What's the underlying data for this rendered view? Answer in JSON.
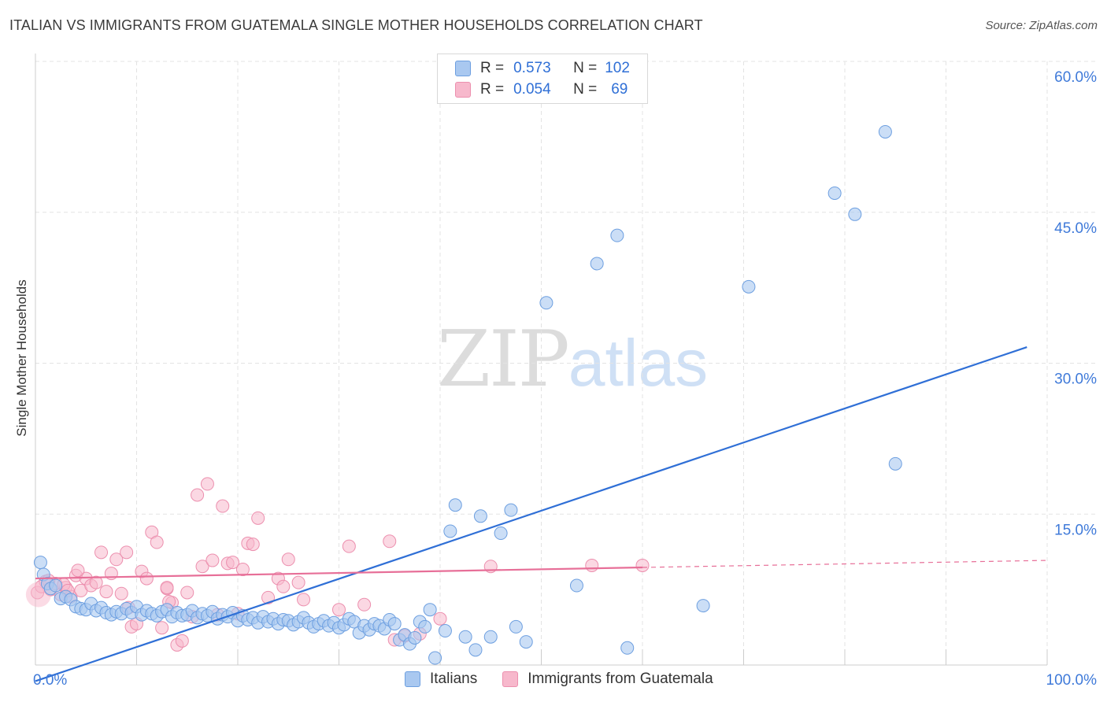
{
  "header": {
    "title": "ITALIAN VS IMMIGRANTS FROM GUATEMALA SINGLE MOTHER HOUSEHOLDS CORRELATION CHART",
    "source": "Source: ZipAtlas.com"
  },
  "watermark": {
    "zip": "ZIP",
    "atlas": "atlas"
  },
  "legend": {
    "rows": [
      {
        "r_label": "R =",
        "r_value": "0.573",
        "n_label": "N =",
        "n_value": "102"
      },
      {
        "r_label": "R =",
        "r_value": "0.054",
        "n_label": "N =",
        "n_value": "69"
      }
    ]
  },
  "bottom_legend": {
    "items": [
      {
        "label": "Italians"
      },
      {
        "label": "Immigrants from Guatemala"
      }
    ]
  },
  "colors": {
    "italians_fill": "#a9c8f0",
    "italians_stroke": "#6d9fe0",
    "italians_line": "#2f6fd6",
    "guatemala_fill": "#f7b8cc",
    "guatemala_stroke": "#ec8fae",
    "guatemala_line": "#e76f98",
    "grid": "#e3e3e3",
    "tick_label": "#3f7ad9"
  },
  "chart_data": {
    "type": "scatter",
    "title": "ITALIAN VS IMMIGRANTS FROM GUATEMALA SINGLE MOTHER HOUSEHOLDS CORRELATION CHART",
    "xlabel": "",
    "ylabel": "Single Mother Households",
    "xlim": [
      0,
      100
    ],
    "ylim": [
      0,
      60
    ],
    "x_tick_labels": [
      {
        "value": 0,
        "label": "0.0%"
      },
      {
        "value": 100,
        "label": "100.0%"
      }
    ],
    "y_tick_labels": [
      {
        "value": 15,
        "label": "15.0%"
      },
      {
        "value": 30,
        "label": "30.0%"
      },
      {
        "value": 45,
        "label": "45.0%"
      },
      {
        "value": 60,
        "label": "60.0%"
      }
    ],
    "grid": true,
    "series": [
      {
        "name": "Italians",
        "points": [
          [
            0.5,
            10.2
          ],
          [
            0.8,
            9.0
          ],
          [
            1.2,
            8.1
          ],
          [
            1.5,
            7.6
          ],
          [
            2.0,
            7.9
          ],
          [
            2.5,
            6.6
          ],
          [
            3.0,
            6.8
          ],
          [
            3.5,
            6.5
          ],
          [
            4.0,
            5.8
          ],
          [
            4.5,
            5.6
          ],
          [
            5.0,
            5.5
          ],
          [
            5.5,
            6.1
          ],
          [
            6.0,
            5.4
          ],
          [
            6.5,
            5.7
          ],
          [
            7.0,
            5.2
          ],
          [
            7.5,
            5.0
          ],
          [
            8.0,
            5.3
          ],
          [
            8.5,
            5.1
          ],
          [
            9.0,
            5.6
          ],
          [
            9.5,
            5.2
          ],
          [
            10.0,
            5.8
          ],
          [
            10.5,
            5.0
          ],
          [
            11.0,
            5.4
          ],
          [
            11.5,
            5.1
          ],
          [
            12.0,
            4.9
          ],
          [
            12.5,
            5.3
          ],
          [
            13.0,
            5.5
          ],
          [
            13.5,
            4.8
          ],
          [
            14.0,
            5.2
          ],
          [
            14.5,
            4.9
          ],
          [
            15.0,
            5.0
          ],
          [
            15.5,
            5.4
          ],
          [
            16.0,
            4.7
          ],
          [
            16.5,
            5.1
          ],
          [
            17.0,
            4.9
          ],
          [
            17.5,
            5.3
          ],
          [
            18.0,
            4.6
          ],
          [
            18.5,
            5.0
          ],
          [
            19.0,
            4.8
          ],
          [
            19.5,
            5.2
          ],
          [
            20.0,
            4.4
          ],
          [
            20.5,
            4.9
          ],
          [
            21.0,
            4.5
          ],
          [
            21.5,
            4.7
          ],
          [
            22.0,
            4.2
          ],
          [
            22.5,
            4.8
          ],
          [
            23.0,
            4.3
          ],
          [
            23.5,
            4.6
          ],
          [
            24.0,
            4.1
          ],
          [
            24.5,
            4.5
          ],
          [
            25.0,
            4.4
          ],
          [
            25.5,
            4.0
          ],
          [
            26.0,
            4.3
          ],
          [
            26.5,
            4.7
          ],
          [
            27.0,
            4.2
          ],
          [
            27.5,
            3.8
          ],
          [
            28.0,
            4.1
          ],
          [
            28.5,
            4.4
          ],
          [
            29.0,
            3.9
          ],
          [
            29.5,
            4.2
          ],
          [
            30.0,
            3.7
          ],
          [
            30.5,
            4.0
          ],
          [
            31.0,
            4.6
          ],
          [
            31.5,
            4.3
          ],
          [
            32.0,
            3.2
          ],
          [
            32.5,
            3.9
          ],
          [
            33.0,
            3.5
          ],
          [
            33.5,
            4.1
          ],
          [
            34.0,
            3.9
          ],
          [
            34.5,
            3.6
          ],
          [
            35.0,
            4.5
          ],
          [
            35.5,
            4.1
          ],
          [
            36.0,
            2.5
          ],
          [
            36.5,
            3.0
          ],
          [
            37.0,
            2.1
          ],
          [
            37.5,
            2.7
          ],
          [
            38.0,
            4.3
          ],
          [
            38.5,
            3.8
          ],
          [
            39.0,
            5.5
          ],
          [
            39.5,
            0.7
          ],
          [
            40.5,
            3.4
          ],
          [
            41.0,
            13.3
          ],
          [
            41.5,
            15.9
          ],
          [
            42.5,
            2.8
          ],
          [
            43.5,
            1.5
          ],
          [
            44.0,
            14.8
          ],
          [
            45.0,
            2.8
          ],
          [
            46.0,
            13.1
          ],
          [
            47.0,
            15.4
          ],
          [
            47.5,
            3.8
          ],
          [
            48.5,
            2.3
          ],
          [
            50.5,
            36.0
          ],
          [
            53.5,
            7.9
          ],
          [
            55.5,
            39.9
          ],
          [
            57.5,
            42.7
          ],
          [
            58.5,
            1.7
          ],
          [
            66.0,
            5.9
          ],
          [
            70.5,
            37.6
          ],
          [
            79.0,
            46.9
          ],
          [
            81.0,
            44.8
          ],
          [
            84.0,
            53.0
          ],
          [
            85.0,
            20.0
          ]
        ],
        "trend": {
          "x": [
            0,
            98
          ],
          "y": [
            -1.6,
            31.6
          ]
        }
      },
      {
        "name": "Immigrants from Guatemala",
        "points": [
          [
            0.2,
            7.2
          ],
          [
            0.6,
            7.8
          ],
          [
            1.0,
            8.3
          ],
          [
            1.5,
            7.5
          ],
          [
            2.0,
            8.1
          ],
          [
            2.5,
            7.0
          ],
          [
            3.0,
            7.7
          ],
          [
            3.5,
            6.8
          ],
          [
            4.0,
            8.9
          ],
          [
            4.5,
            7.4
          ],
          [
            5.0,
            8.6
          ],
          [
            5.5,
            7.9
          ],
          [
            6.0,
            8.2
          ],
          [
            6.5,
            11.2
          ],
          [
            7.0,
            7.3
          ],
          [
            7.5,
            9.1
          ],
          [
            8.0,
            10.5
          ],
          [
            8.5,
            7.1
          ],
          [
            9.0,
            11.2
          ],
          [
            9.5,
            3.8
          ],
          [
            10.0,
            4.1
          ],
          [
            10.5,
            9.3
          ],
          [
            11.0,
            8.6
          ],
          [
            11.5,
            13.2
          ],
          [
            12.0,
            12.2
          ],
          [
            12.5,
            3.7
          ],
          [
            13.0,
            7.6
          ],
          [
            13.5,
            6.2
          ],
          [
            14.0,
            2.0
          ],
          [
            14.5,
            2.4
          ],
          [
            15.0,
            7.2
          ],
          [
            15.5,
            4.8
          ],
          [
            16.0,
            16.9
          ],
          [
            16.5,
            9.8
          ],
          [
            17.0,
            18.0
          ],
          [
            17.5,
            10.4
          ],
          [
            18.0,
            5.0
          ],
          [
            18.5,
            15.8
          ],
          [
            19.0,
            10.1
          ],
          [
            19.5,
            10.2
          ],
          [
            20.0,
            5.1
          ],
          [
            20.5,
            9.5
          ],
          [
            21.0,
            12.1
          ],
          [
            21.5,
            12.0
          ],
          [
            22.0,
            14.6
          ],
          [
            23.0,
            6.7
          ],
          [
            24.0,
            8.6
          ],
          [
            24.5,
            7.8
          ],
          [
            25.0,
            10.5
          ],
          [
            26.0,
            8.2
          ],
          [
            26.5,
            6.5
          ],
          [
            30.0,
            5.5
          ],
          [
            31.0,
            11.8
          ],
          [
            32.5,
            6.0
          ],
          [
            35.0,
            12.3
          ],
          [
            35.5,
            2.5
          ],
          [
            36.5,
            2.9
          ],
          [
            38.0,
            3.1
          ],
          [
            40.0,
            4.6
          ],
          [
            45.0,
            9.8
          ],
          [
            55.0,
            9.9
          ],
          [
            60.0,
            9.9
          ],
          [
            1.3,
            8.4
          ],
          [
            2.8,
            8.0
          ],
          [
            3.2,
            7.4
          ],
          [
            4.2,
            9.4
          ],
          [
            9.2,
            5.7
          ],
          [
            13.2,
            6.3
          ],
          [
            13.0,
            7.7
          ]
        ],
        "trend": {
          "x": [
            0,
            60,
            100
          ],
          "y": [
            8.6,
            9.7,
            10.4
          ]
        }
      }
    ]
  }
}
